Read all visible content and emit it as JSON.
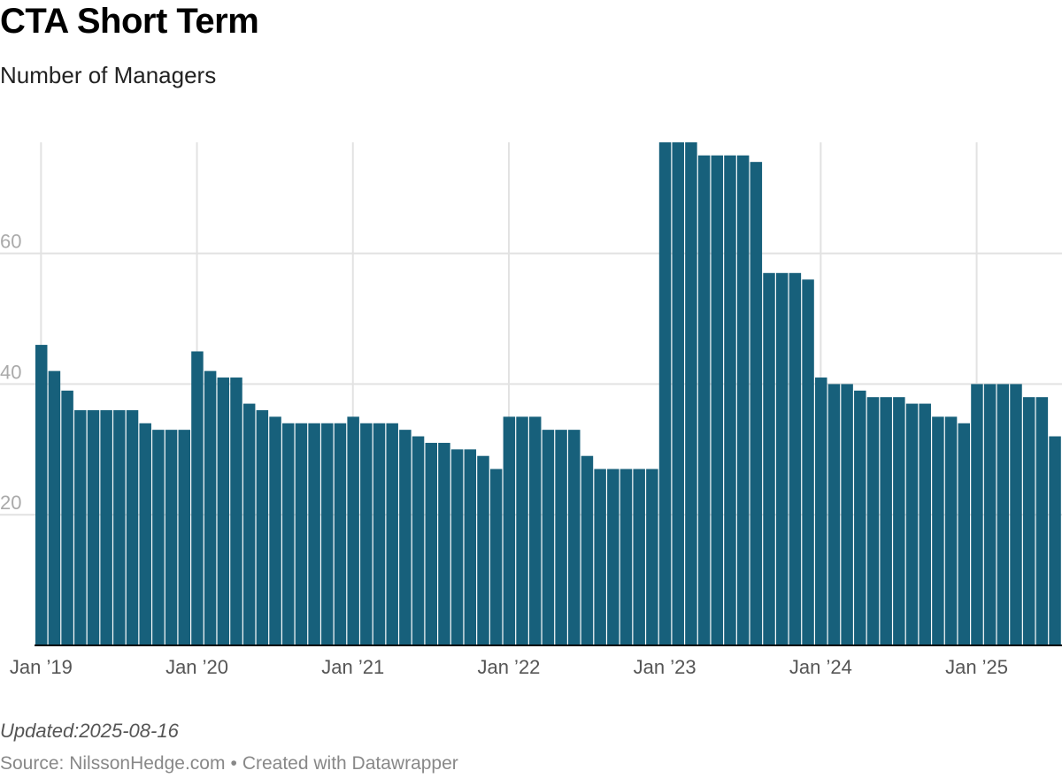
{
  "header": {
    "title": "CTA Short Term",
    "subtitle": "Number of Managers"
  },
  "footer": {
    "notes": "Updated:2025-08-16",
    "source_label": "Source:",
    "source": "NilssonHedge.com",
    "separator": "•",
    "credit": "Created with Datawrapper"
  },
  "colors": {
    "bar": "#17607b",
    "grid": "#e2e2e2",
    "axis": "#000000",
    "y_tick_text": "#aaaaaa",
    "x_tick_text": "#555555"
  },
  "chart_data": {
    "type": "bar",
    "title": "CTA Short Term",
    "subtitle": "Number of Managers",
    "xlabel": "",
    "ylabel": "",
    "ylim": [
      0,
      77
    ],
    "grid": true,
    "y_ticks": [
      20,
      40,
      60
    ],
    "x_start": "2019-01",
    "x_ticks": [
      {
        "label": "Jan ’19",
        "date": "2019-01"
      },
      {
        "label": "Jan ’20",
        "date": "2020-01"
      },
      {
        "label": "Jan ’21",
        "date": "2021-01"
      },
      {
        "label": "Jan ’22",
        "date": "2022-01"
      },
      {
        "label": "Jan ’23",
        "date": "2023-01"
      },
      {
        "label": "Jan ’24",
        "date": "2024-01"
      },
      {
        "label": "Jan ’25",
        "date": "2025-01"
      }
    ],
    "values": [
      46,
      42,
      39,
      36,
      36,
      36,
      36,
      36,
      34,
      33,
      33,
      33,
      45,
      42,
      41,
      41,
      37,
      36,
      35,
      34,
      34,
      34,
      34,
      34,
      35,
      34,
      34,
      34,
      33,
      32,
      31,
      31,
      30,
      30,
      29,
      27,
      35,
      35,
      35,
      33,
      33,
      33,
      29,
      27,
      27,
      27,
      27,
      27,
      77,
      77,
      77,
      75,
      75,
      75,
      75,
      74,
      57,
      57,
      57,
      56,
      41,
      40,
      40,
      39,
      38,
      38,
      38,
      37,
      37,
      35,
      35,
      34,
      40,
      40,
      40,
      40,
      38,
      38,
      32
    ]
  }
}
